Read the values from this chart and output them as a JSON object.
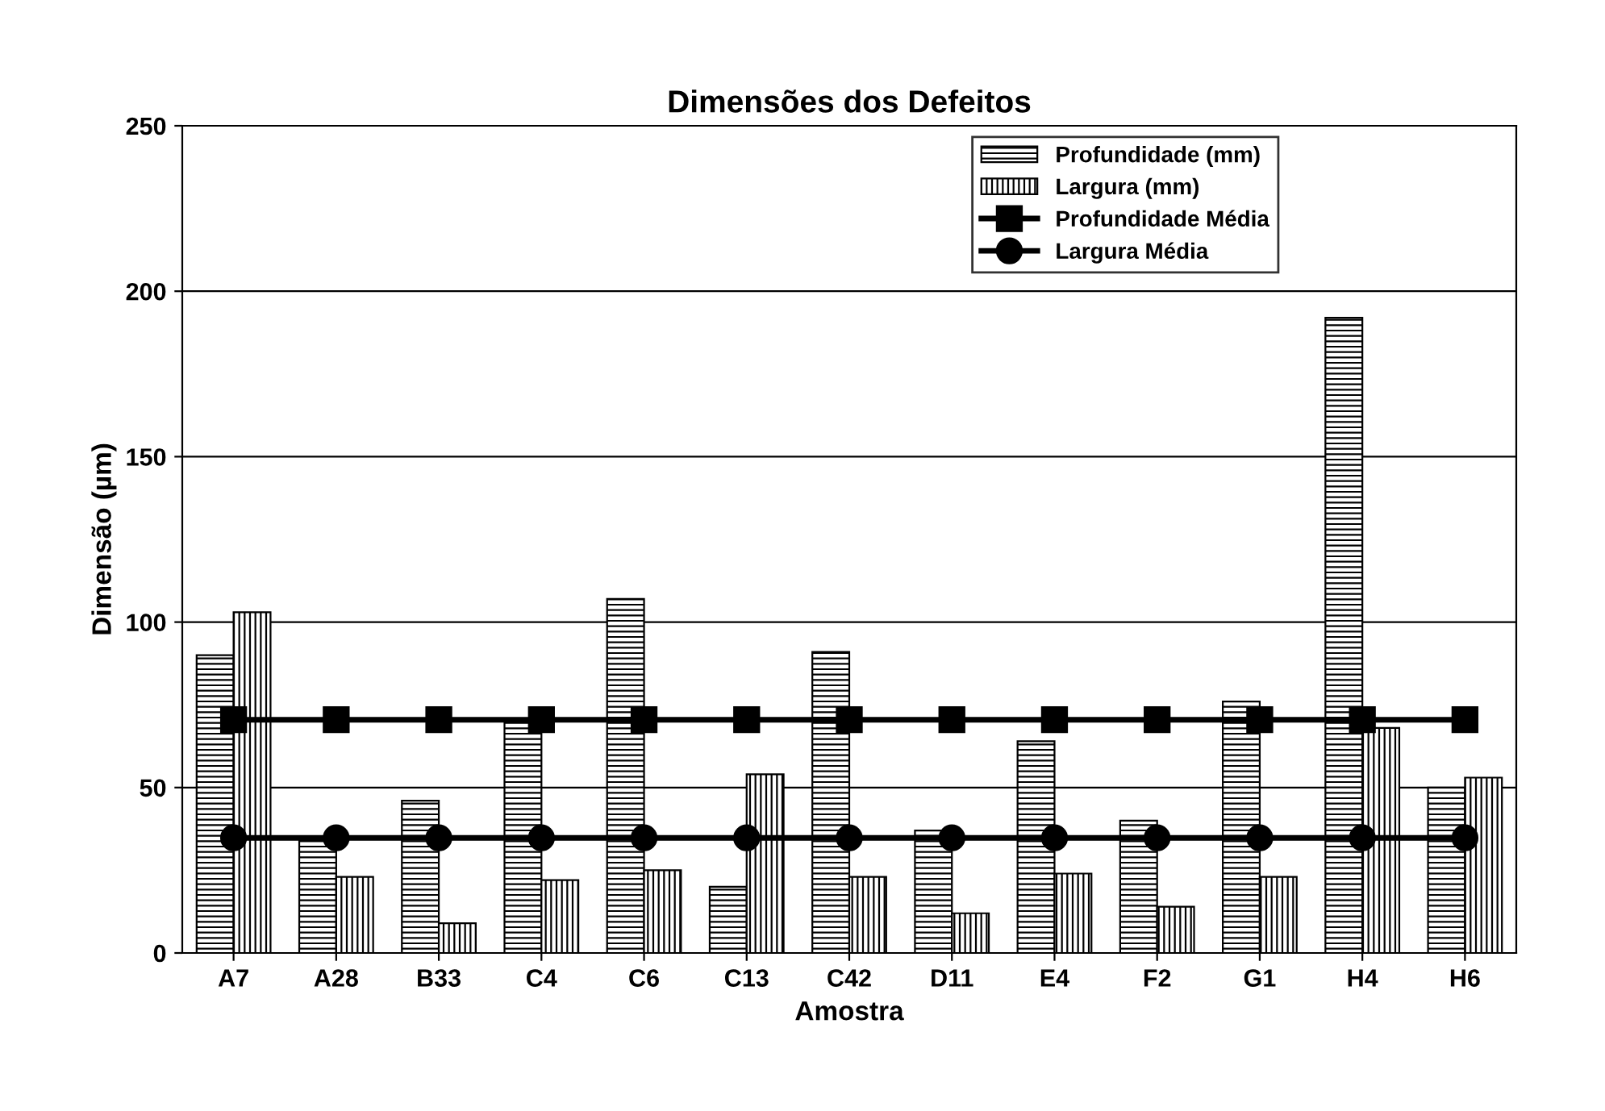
{
  "chart_data": {
    "type": "bar",
    "title": "Dimensões dos Defeitos",
    "xlabel": "Amostra",
    "ylabel": "Dimensão (µm)",
    "categories": [
      "A7",
      "A28",
      "B33",
      "C4",
      "C6",
      "C13",
      "C42",
      "D11",
      "E4",
      "F2",
      "G1",
      "H4",
      "H6"
    ],
    "series": [
      {
        "name": "Profundidade (mm)",
        "color": "#000000",
        "values": [
          90,
          34,
          46,
          70,
          107,
          20,
          91,
          37,
          64,
          40,
          76,
          192,
          50
        ]
      },
      {
        "name": "Largura (mm)",
        "color": "#000000",
        "values": [
          103,
          23,
          9,
          22,
          25,
          54,
          23,
          12,
          24,
          14,
          23,
          68,
          53
        ]
      },
      {
        "name": "Profundidade Média",
        "type": "line",
        "color": "#000000",
        "marker": "square",
        "values": [
          70.5,
          70.5,
          70.5,
          70.5,
          70.5,
          70.5,
          70.5,
          70.5,
          70.5,
          70.5,
          70.5,
          70.5,
          70.5
        ]
      },
      {
        "name": "Largura Média",
        "type": "line",
        "color": "#000000",
        "marker": "circle",
        "values": [
          34.8,
          34.8,
          34.8,
          34.8,
          34.8,
          34.8,
          34.8,
          34.8,
          34.8,
          34.8,
          34.8,
          34.8,
          34.8
        ]
      }
    ],
    "ylim": [
      0,
      250
    ],
    "yticks": [
      0,
      50,
      100,
      150,
      200,
      250
    ],
    "grid": "y",
    "legend": "top right"
  }
}
